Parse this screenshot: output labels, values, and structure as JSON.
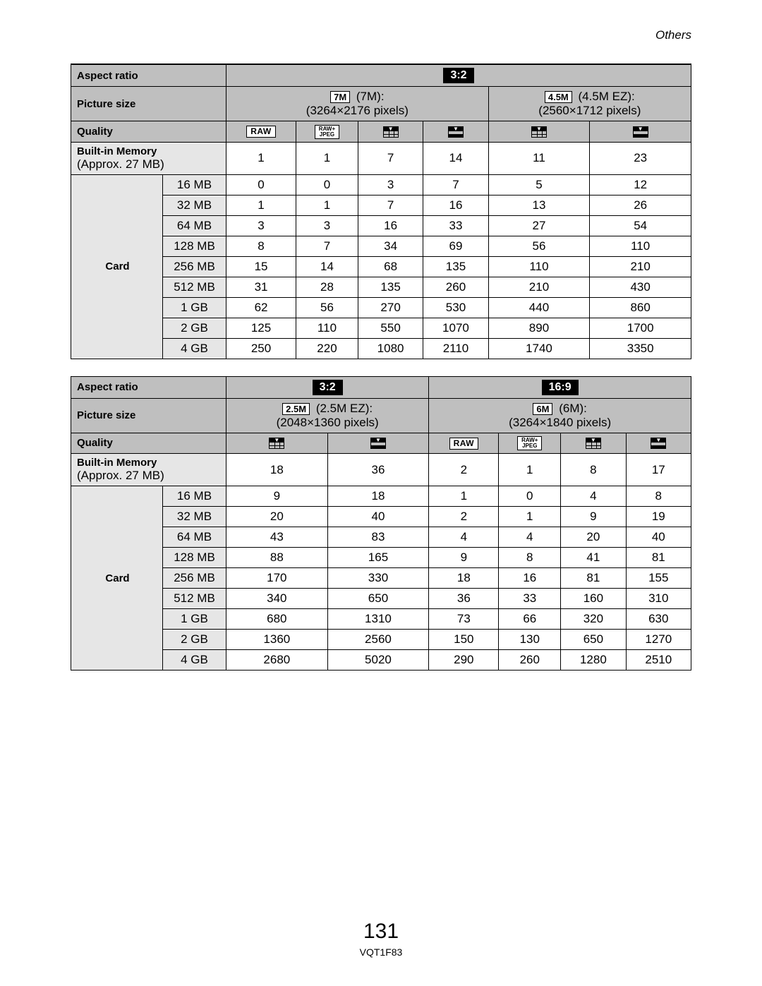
{
  "section_title": "Others",
  "page_number": "131",
  "doc_code": "VQT1F83",
  "labels": {
    "aspect_ratio": "Aspect ratio",
    "picture_size": "Picture size",
    "quality": "Quality",
    "builtin_memory": "Built-in Memory",
    "builtin_sub": "(Approx. 27 MB)",
    "card": "Card"
  },
  "quality_icons": {
    "raw": "RAW",
    "rawjpeg_top": "RAW+",
    "rawjpeg_bot": "JPEG"
  },
  "table1": {
    "aspect": "3:2",
    "sizes": [
      {
        "badge": "7M",
        "label": "(7M):",
        "pixels": "(3264×2176 pixels)"
      },
      {
        "badge": "4.5M",
        "label": "(4.5M EZ):",
        "pixels": "(2560×1712 pixels)"
      }
    ],
    "quality_seq": [
      "raw",
      "rawjpeg",
      "grid",
      "solid",
      "grid",
      "solid"
    ],
    "builtin": [
      "1",
      "1",
      "7",
      "14",
      "11",
      "23"
    ],
    "card_rows": [
      {
        "size": "16 MB",
        "vals": [
          "0",
          "0",
          "3",
          "7",
          "5",
          "12"
        ]
      },
      {
        "size": "32 MB",
        "vals": [
          "1",
          "1",
          "7",
          "16",
          "13",
          "26"
        ]
      },
      {
        "size": "64 MB",
        "vals": [
          "3",
          "3",
          "16",
          "33",
          "27",
          "54"
        ]
      },
      {
        "size": "128 MB",
        "vals": [
          "8",
          "7",
          "34",
          "69",
          "56",
          "110"
        ]
      },
      {
        "size": "256 MB",
        "vals": [
          "15",
          "14",
          "68",
          "135",
          "110",
          "210"
        ]
      },
      {
        "size": "512 MB",
        "vals": [
          "31",
          "28",
          "135",
          "260",
          "210",
          "430"
        ]
      },
      {
        "size": "1 GB",
        "vals": [
          "62",
          "56",
          "270",
          "530",
          "440",
          "860"
        ]
      },
      {
        "size": "2 GB",
        "vals": [
          "125",
          "110",
          "550",
          "1070",
          "890",
          "1700"
        ]
      },
      {
        "size": "4 GB",
        "vals": [
          "250",
          "220",
          "1080",
          "2110",
          "1740",
          "3350"
        ]
      }
    ]
  },
  "table2": {
    "aspects": [
      "3:2",
      "16:9"
    ],
    "sizes": [
      {
        "badge": "2.5M",
        "label": "(2.5M EZ):",
        "pixels": "(2048×1360 pixels)"
      },
      {
        "badge": "6M",
        "label": "(6M):",
        "pixels": "(3264×1840 pixels)"
      }
    ],
    "quality_seq": [
      "grid",
      "solid",
      "raw",
      "rawjpeg",
      "grid",
      "solid"
    ],
    "builtin": [
      "18",
      "36",
      "2",
      "1",
      "8",
      "17"
    ],
    "card_rows": [
      {
        "size": "16 MB",
        "vals": [
          "9",
          "18",
          "1",
          "0",
          "4",
          "8"
        ]
      },
      {
        "size": "32 MB",
        "vals": [
          "20",
          "40",
          "2",
          "1",
          "9",
          "19"
        ]
      },
      {
        "size": "64 MB",
        "vals": [
          "43",
          "83",
          "4",
          "4",
          "20",
          "40"
        ]
      },
      {
        "size": "128 MB",
        "vals": [
          "88",
          "165",
          "9",
          "8",
          "41",
          "81"
        ]
      },
      {
        "size": "256 MB",
        "vals": [
          "170",
          "330",
          "18",
          "16",
          "81",
          "155"
        ]
      },
      {
        "size": "512 MB",
        "vals": [
          "340",
          "650",
          "36",
          "33",
          "160",
          "310"
        ]
      },
      {
        "size": "1 GB",
        "vals": [
          "680",
          "1310",
          "73",
          "66",
          "320",
          "630"
        ]
      },
      {
        "size": "2 GB",
        "vals": [
          "1360",
          "2560",
          "150",
          "130",
          "650",
          "1270"
        ]
      },
      {
        "size": "4 GB",
        "vals": [
          "2680",
          "5020",
          "290",
          "260",
          "1280",
          "2510"
        ]
      }
    ]
  }
}
